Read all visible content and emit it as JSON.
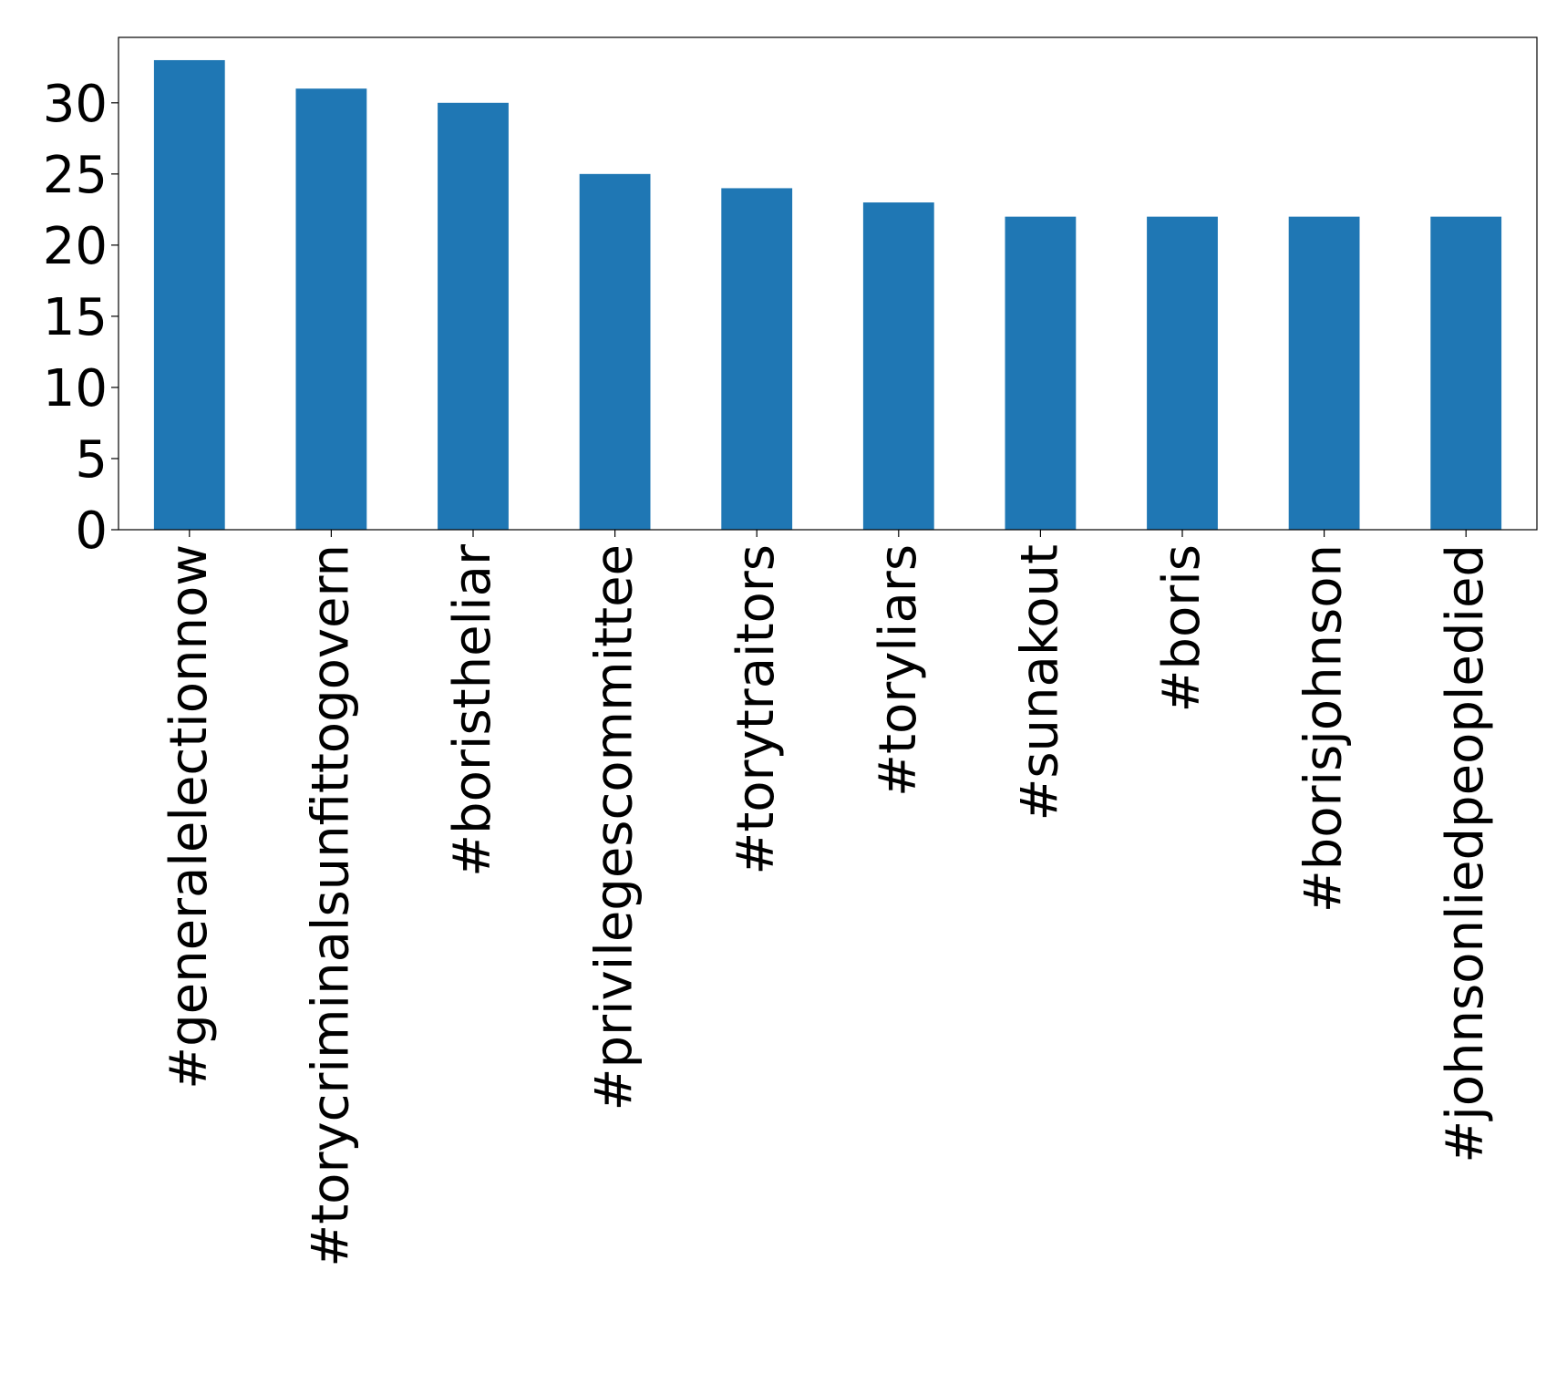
{
  "chart_data": {
    "type": "bar",
    "title": "",
    "xlabel": "",
    "ylabel": "",
    "categories": [
      "#generalelectionnow",
      "#torycriminalsunfittogovern",
      "#boristheliar",
      "#privilegescommittee",
      "#torytraitors",
      "#toryliars",
      "#sunakout",
      "#boris",
      "#borisjohnson",
      "#johnsonliedpeopledied"
    ],
    "values": [
      33,
      31,
      30,
      25,
      24,
      23,
      22,
      22,
      22,
      22
    ],
    "ylim": [
      0,
      34.6
    ],
    "yticks": [
      0,
      5,
      10,
      15,
      20,
      25,
      30
    ],
    "grid": false,
    "legend": false,
    "bar_color": "#1f77b4",
    "axis_color": "#000000",
    "background": "#ffffff"
  }
}
